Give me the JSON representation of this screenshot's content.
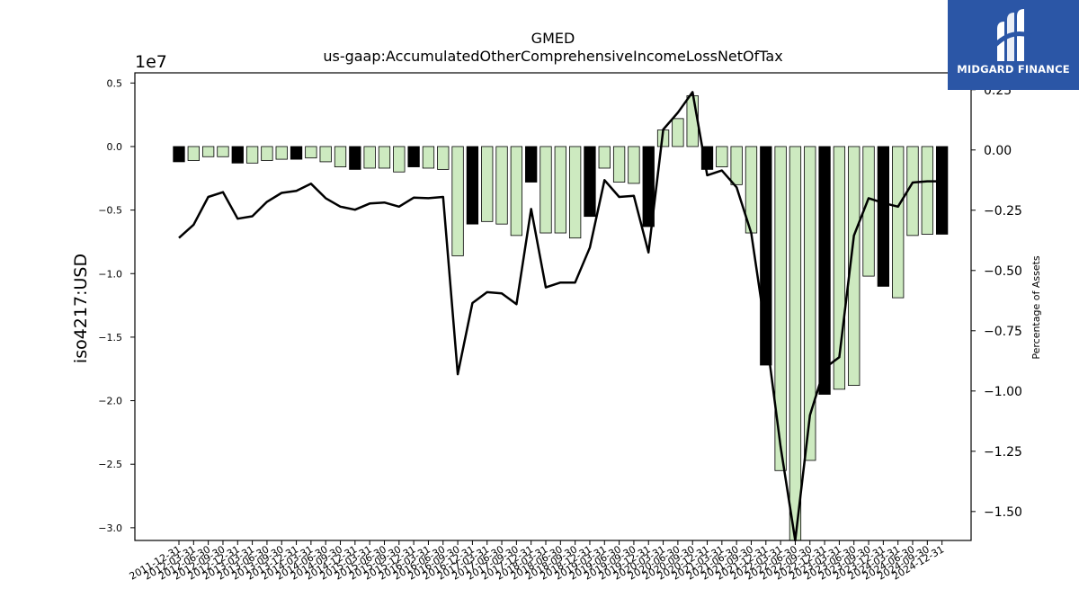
{
  "chart_data": {
    "type": "bar",
    "title": "GMED",
    "subtitle": "us-gaap:AccumulatedOtherComprehensiveIncomeLossNetOfTax",
    "ylabel": "iso4217:USD",
    "y2label": "Percentage of Assets",
    "y_offset_label": "1e7",
    "ylim": [
      -3.1,
      0.58
    ],
    "y2lim": [
      -1.62,
      0.32
    ],
    "yticks": [
      0.5,
      0.0,
      -0.5,
      -1.0,
      -1.5,
      -2.0,
      -2.5,
      -3.0
    ],
    "ytick_labels": [
      "0.5",
      "0.0",
      "−0.5",
      "−1.0",
      "−1.5",
      "−2.0",
      "−2.5",
      "−3.0"
    ],
    "y2ticks": [
      0.25,
      0.0,
      -0.25,
      -0.5,
      -0.75,
      -1.0,
      -1.25,
      -1.5
    ],
    "y2tick_labels": [
      "0.25",
      "0.00",
      "−0.25",
      "−0.50",
      "−0.75",
      "−1.00",
      "−1.25",
      "−1.50"
    ],
    "colors": {
      "fy_bar": "#000000",
      "quarter_bar": "#cdeac0",
      "line": "#000000"
    },
    "categories": [
      "2011-12-31",
      "2012-03-31",
      "2012-06-30",
      "2012-09-30",
      "2012-12-31",
      "2013-03-31",
      "2013-06-30",
      "2013-09-30",
      "2013-12-31",
      "2014-03-31",
      "2014-06-30",
      "2014-09-30",
      "2014-12-31",
      "2015-03-31",
      "2015-06-30",
      "2015-09-30",
      "2015-12-31",
      "2016-03-31",
      "2016-06-30",
      "2016-09-30",
      "2016-12-31",
      "2017-03-31",
      "2017-06-30",
      "2017-09-30",
      "2017-12-31",
      "2018-03-31",
      "2018-06-30",
      "2018-09-30",
      "2018-12-31",
      "2019-03-31",
      "2019-06-30",
      "2019-09-30",
      "2019-12-31",
      "2020-03-31",
      "2020-06-30",
      "2020-09-30",
      "2020-12-31",
      "2021-03-31",
      "2021-06-30",
      "2021-09-30",
      "2021-12-31",
      "2022-03-31",
      "2022-06-30",
      "2022-09-30",
      "2022-12-31",
      "2023-03-31",
      "2023-06-30",
      "2023-09-30",
      "2023-12-31",
      "2024-03-31",
      "2024-06-30",
      "2024-09-30",
      "2024-12-31"
    ],
    "tick_labels": [
      "2011-12-31",
      "2012-03-31",
      "2012-06-30",
      "2012-09-30",
      "2012-12-31",
      "2013-03-31",
      "2013-06-30",
      "2013-09-30",
      "2013-12-31",
      "2014-03-31",
      "2014-06-30",
      "2014-09-30",
      "2014-12-31",
      "2015-03-31",
      "2015-06-30",
      "2015-09-30",
      "2015-12-31",
      "2016-03-31",
      "2016-06-30",
      "2016-09-30",
      "2016-12-31",
      "2017-03-31",
      "2017-06-30",
      "2017-09-30",
      "2017-12-31",
      "2018-03-31",
      "2018-06-30",
      "2018-09-30",
      "2018-12-31",
      "2019-03-31",
      "2019-06-30",
      "2019-09-30",
      "2019-12-31",
      "2020-03-31",
      "2020-06-30",
      "2020-09-30",
      "2020-12-31",
      "2021-03-31",
      "2021-06-30",
      "2021-09-30",
      "2021-12-31",
      "2022-03-31",
      "2022-06-30",
      "2022-09-30",
      "2022-12-31",
      "2023-03-31",
      "2023-06-30",
      "2023-09-30",
      "2023-12-31",
      "2024-03-31",
      "2024-06-30",
      "2024-09-30",
      "2024-12-31"
    ],
    "fiscal_year_end": [
      true,
      false,
      false,
      false,
      true,
      false,
      false,
      false,
      true,
      false,
      false,
      false,
      true,
      false,
      false,
      false,
      true,
      false,
      false,
      false,
      true,
      false,
      false,
      false,
      true,
      false,
      false,
      false,
      true,
      false,
      false,
      false,
      true,
      false,
      false,
      false,
      true,
      false,
      false,
      false,
      true,
      false,
      false,
      false,
      true,
      false,
      false,
      false,
      true,
      false,
      false,
      false,
      true
    ],
    "series": [
      {
        "name": "",
        "axis": "left",
        "values": [
          -0.12,
          -0.11,
          -0.08,
          -0.08,
          -0.13,
          -0.13,
          -0.11,
          -0.1,
          -0.1,
          -0.09,
          -0.12,
          -0.16,
          -0.18,
          -0.17,
          -0.17,
          -0.2,
          -0.16,
          -0.17,
          -0.18,
          -0.86,
          -0.61,
          -0.59,
          -0.61,
          -0.7,
          -0.28,
          -0.68,
          -0.68,
          -0.72,
          -0.55,
          -0.17,
          -0.28,
          -0.29,
          -0.63,
          0.13,
          0.22,
          0.4,
          -0.18,
          -0.16,
          -0.3,
          -0.68,
          -1.72,
          -2.55,
          -3.1,
          -2.47,
          -1.95,
          -1.91,
          -1.88,
          -1.02,
          -1.1,
          -1.19,
          -0.7,
          -0.69,
          -0.69
        ]
      },
      {
        "name": "",
        "axis": "right",
        "values": [
          -0.365,
          -0.31,
          -0.195,
          -0.175,
          -0.285,
          -0.275,
          -0.215,
          -0.178,
          -0.17,
          -0.14,
          -0.2,
          -0.235,
          -0.248,
          -0.222,
          -0.218,
          -0.235,
          -0.198,
          -0.2,
          -0.195,
          -0.93,
          -0.635,
          -0.59,
          -0.595,
          -0.64,
          -0.245,
          -0.57,
          -0.55,
          -0.55,
          -0.405,
          -0.125,
          -0.195,
          -0.19,
          -0.425,
          0.085,
          0.155,
          0.24,
          -0.105,
          -0.085,
          -0.155,
          -0.345,
          -0.76,
          -1.23,
          -1.62,
          -1.1,
          -0.905,
          -0.86,
          -0.355,
          -0.2,
          -0.22,
          -0.235,
          -0.135,
          -0.13,
          -0.13
        ]
      }
    ]
  },
  "logo": {
    "text": "MIDGARD FINANCE"
  }
}
